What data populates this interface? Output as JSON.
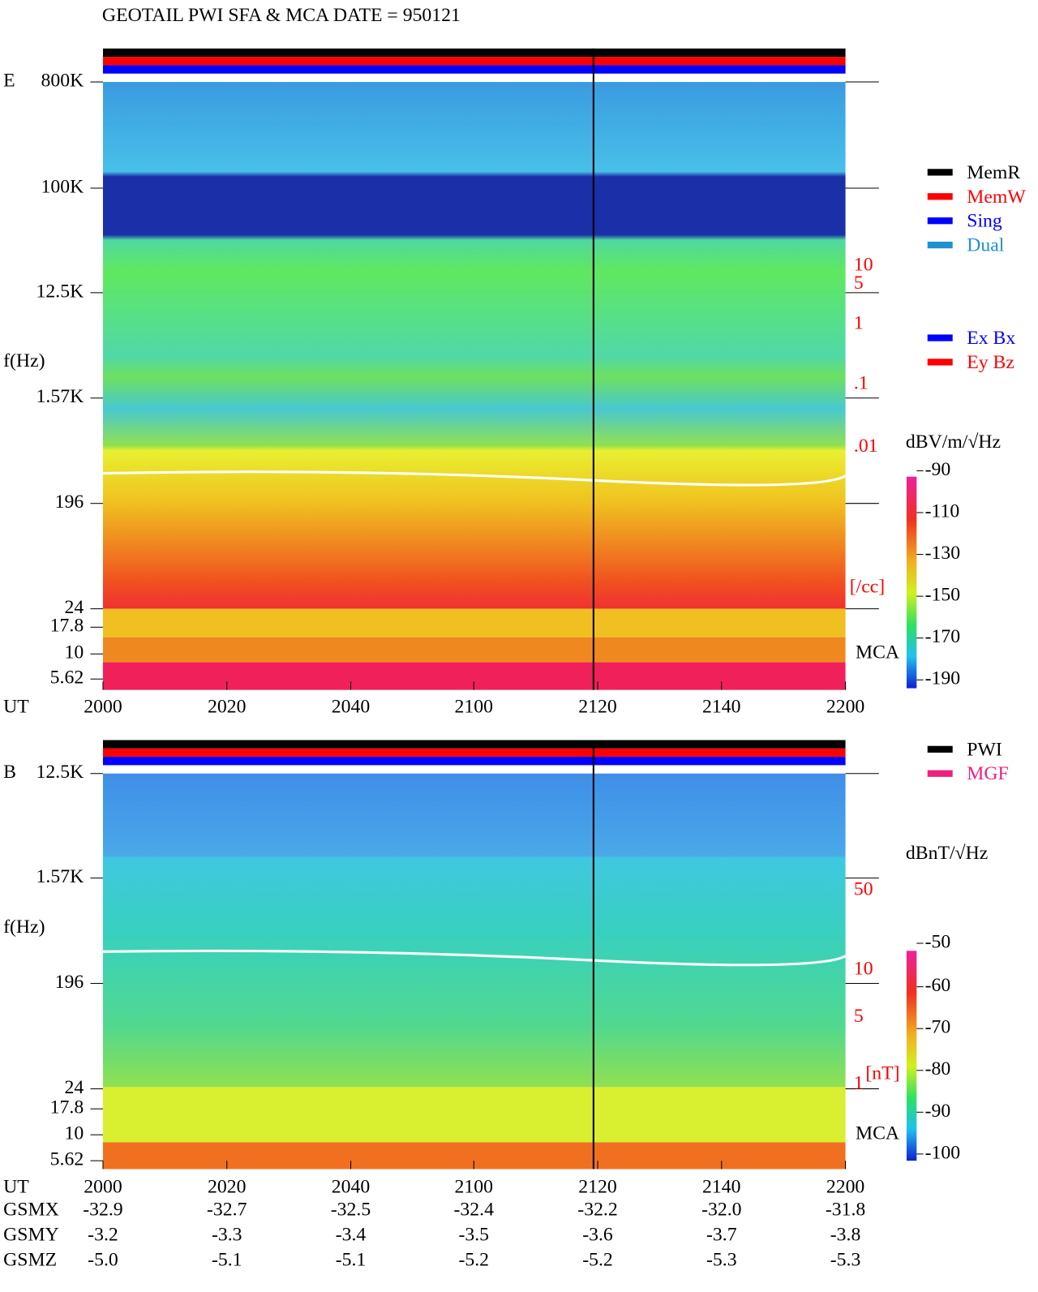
{
  "title": "GEOTAIL  PWI SFA & MCA   DATE = 950121",
  "panels": [
    {
      "label": "E",
      "freq_ticks": [
        "800K",
        "100K",
        "12.5K",
        "1.57K",
        "196",
        "24",
        "17.8",
        "10",
        "5.62"
      ],
      "axis_label": "f(Hz)",
      "density_ticks": [
        "10",
        "5",
        "1",
        ".1",
        ".01"
      ],
      "density_unit": "[/cc]",
      "mca": "MCA",
      "ut_label": "UT",
      "time_ticks": [
        "2000",
        "2020",
        "2040",
        "2100",
        "2120",
        "2140",
        "2200"
      ],
      "legend_mode": [
        "MemR",
        "MemW",
        "Sing",
        "Dual"
      ],
      "legend_component": [
        "Ex Bx",
        "Ey Bz"
      ],
      "colorbar_unit": "dBV/m/√Hz",
      "colorbar_ticks": [
        "-90",
        "-110",
        "-130",
        "-150",
        "-170",
        "-190"
      ]
    },
    {
      "label": "B",
      "freq_ticks": [
        "12.5K",
        "1.57K",
        "196",
        "24",
        "17.8",
        "10",
        "5.62"
      ],
      "axis_label": "f(Hz)",
      "density_ticks": [
        "50",
        "10",
        "5",
        "1"
      ],
      "density_unit": "[nT]",
      "mca": "MCA",
      "ut_label": "UT",
      "time_ticks": [
        "2000",
        "2020",
        "2040",
        "2100",
        "2120",
        "2140",
        "2200"
      ],
      "legend_source": [
        "PWI",
        "MGF"
      ],
      "colorbar_unit": "dBnT/√Hz",
      "colorbar_ticks": [
        "-50",
        "-60",
        "-70",
        "-80",
        "-90",
        "-100"
      ]
    }
  ],
  "orbit": [
    {
      "label": "GSMX",
      "values": [
        "-32.9",
        "-32.7",
        "-32.5",
        "-32.4",
        "-32.2",
        "-32.0",
        "-31.8"
      ]
    },
    {
      "label": "GSMY",
      "values": [
        "-3.2",
        "-3.3",
        "-3.4",
        "-3.5",
        "-3.6",
        "-3.7",
        "-3.8"
      ]
    },
    {
      "label": "GSMZ",
      "values": [
        "-5.0",
        "-5.1",
        "-5.1",
        "-5.2",
        "-5.2",
        "-5.3",
        "-5.3"
      ]
    }
  ]
}
